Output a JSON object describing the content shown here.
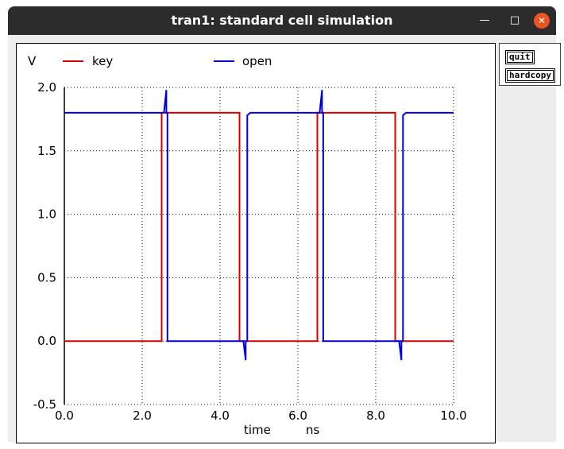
{
  "window": {
    "title": "tran1: standard cell simulation"
  },
  "side_buttons": {
    "quit": "quit",
    "hardcopy": "hardcopy"
  },
  "chart_data": {
    "type": "line",
    "ylabel": "V",
    "xlabel": "time",
    "xunit": "ns",
    "xlim": [
      0.0,
      10.0
    ],
    "ylim": [
      -0.5,
      2.0
    ],
    "x_ticks": [
      "0.0",
      "2.0",
      "4.0",
      "6.0",
      "8.0",
      "10.0"
    ],
    "y_ticks": [
      "2.0",
      "1.5",
      "1.0",
      "0.5",
      "0.0",
      "-0.5"
    ],
    "x_tick_values": [
      0,
      2,
      4,
      6,
      8,
      10
    ],
    "y_tick_values": [
      2.0,
      1.5,
      1.0,
      0.5,
      0.0,
      -0.5
    ],
    "grid": true,
    "legend_position": "top-left",
    "series": [
      {
        "name": "key",
        "color": "#d40000",
        "x": [
          0.0,
          2.5,
          2.5,
          4.5,
          4.5,
          6.5,
          6.5,
          8.5,
          8.5,
          10.0
        ],
        "y": [
          0.0,
          0.0,
          1.8,
          1.8,
          0.0,
          0.0,
          1.8,
          1.8,
          0.0,
          0.0
        ]
      },
      {
        "name": "open",
        "color": "#0000d4",
        "x": [
          0.0,
          2.56,
          2.56,
          2.62,
          2.62,
          2.65,
          2.65,
          2.7,
          4.6,
          4.6,
          4.66,
          4.66,
          4.7,
          4.7,
          4.78,
          6.56,
          6.56,
          6.62,
          6.62,
          6.65,
          6.65,
          6.7,
          8.6,
          8.6,
          8.66,
          8.66,
          8.7,
          8.7,
          8.78,
          10.0
        ],
        "y": [
          1.8,
          1.8,
          1.8,
          1.98,
          1.8,
          1.8,
          0.0,
          0.0,
          0.0,
          0.0,
          -0.15,
          0.0,
          0.0,
          1.78,
          1.8,
          1.8,
          1.8,
          1.98,
          1.8,
          1.8,
          0.0,
          0.0,
          0.0,
          0.0,
          -0.15,
          0.0,
          0.0,
          1.78,
          1.8,
          1.8
        ]
      }
    ]
  }
}
